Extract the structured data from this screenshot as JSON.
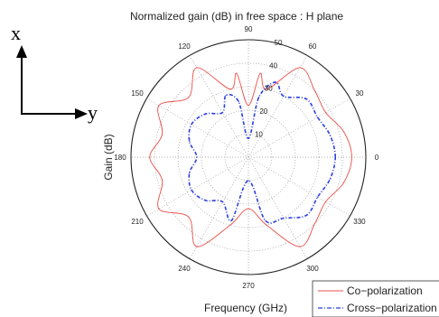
{
  "chart_data": {
    "type": "polar",
    "title": "Normalized gain (dB) in free space : H plane",
    "xlabel": "Frequency (GHz)",
    "ylabel": "Gain (dB)",
    "r_range": [
      0,
      50
    ],
    "r_tick_labels": [
      "10",
      "20",
      "30",
      "40",
      "50"
    ],
    "angle_tick_labels": [
      "0",
      "30",
      "60",
      "90",
      "120",
      "150",
      "180",
      "210",
      "240",
      "270",
      "300",
      "330"
    ],
    "grid": true,
    "legend": {
      "placement": "bottom-right",
      "entries": [
        "Co−polarization",
        "Cross−polarization"
      ]
    },
    "series": [
      {
        "name": "Co−polarization",
        "color": "#e8504a",
        "line": "solid",
        "angle_deg": [
          0,
          15,
          30,
          45,
          60,
          75,
          82,
          90,
          98,
          105,
          120,
          135,
          150,
          165,
          180,
          195,
          210,
          225,
          240,
          255,
          270,
          285,
          300,
          315,
          330,
          345,
          360
        ],
        "r": [
          44,
          42,
          38,
          40,
          44,
          30,
          36,
          22,
          36,
          30,
          44,
          36,
          44,
          38,
          42,
          38,
          44,
          36,
          44,
          30,
          22,
          30,
          44,
          40,
          38,
          42,
          44
        ]
      },
      {
        "name": "Cross−polarization",
        "color": "#2a3ee0",
        "line": "dash-dot",
        "angle_deg": [
          0,
          15,
          30,
          45,
          60,
          70,
          80,
          90,
          100,
          110,
          120,
          135,
          150,
          165,
          180,
          195,
          210,
          225,
          240,
          255,
          270,
          285,
          300,
          315,
          330,
          345,
          360
        ],
        "r": [
          37,
          36,
          34,
          35,
          30,
          34,
          26,
          8,
          24,
          28,
          22,
          26,
          28,
          26,
          22,
          26,
          28,
          26,
          22,
          28,
          10,
          28,
          30,
          35,
          34,
          36,
          37
        ]
      }
    ]
  },
  "annotations": {
    "x_axis_letter": "x",
    "y_axis_letter": "y"
  }
}
